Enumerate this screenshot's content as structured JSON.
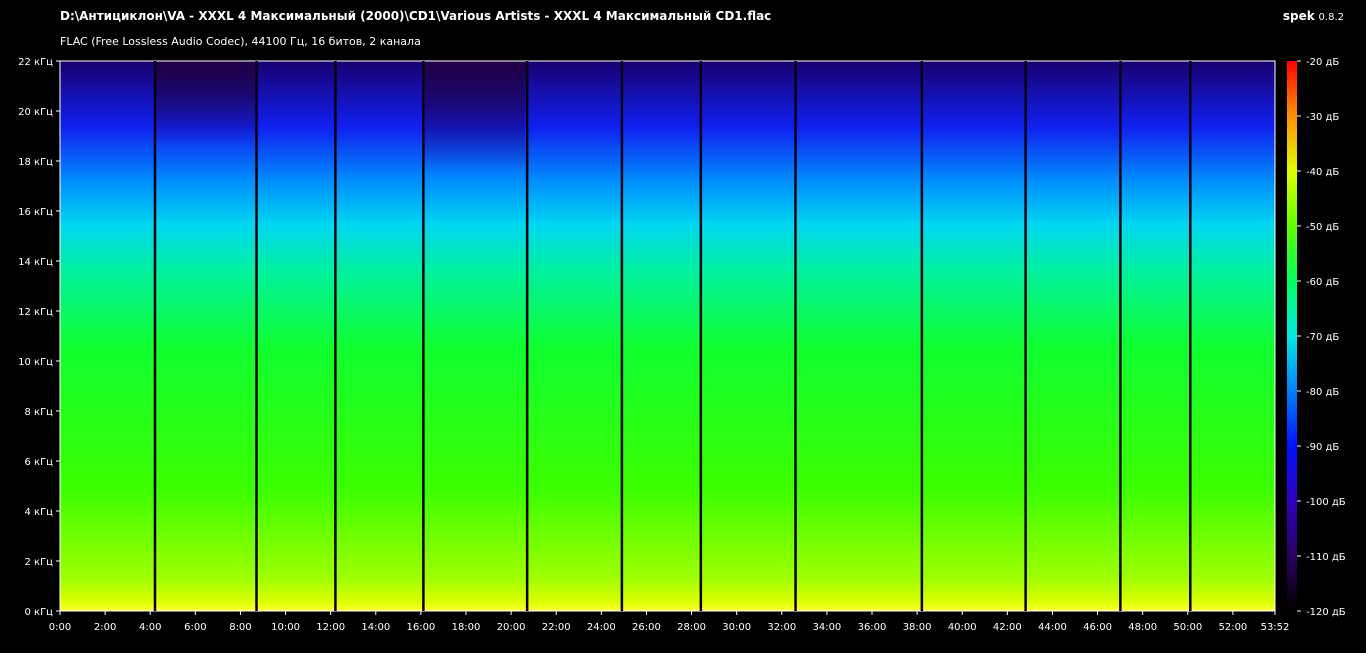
{
  "header": {
    "title": "D:\\Антициклон\\VA - XXXL 4 Максимальный (2000)\\CD1\\Various Artists - XXXL 4 Максимальный CD1.flac",
    "codec_info": "FLAC (Free Lossless Audio Codec), 44100 Гц, 16 битов, 2 канала",
    "app_name": "spek",
    "app_version": "0.8.2"
  },
  "spectrogram": {
    "freq_ticks": [
      "0 кГц",
      "2 кГц",
      "4 кГц",
      "6 кГц",
      "8 кГц",
      "10 кГц",
      "12 кГц",
      "14 кГц",
      "16 кГц",
      "18 кГц",
      "20 кГц",
      "22 кГц"
    ],
    "freq_range_khz": [
      0,
      22
    ],
    "time_ticks": [
      "0:00",
      "2:00",
      "4:00",
      "6:00",
      "8:00",
      "10:00",
      "12:00",
      "14:00",
      "16:00",
      "18:00",
      "20:00",
      "22:00",
      "24:00",
      "26:00",
      "28:00",
      "30:00",
      "32:00",
      "34:00",
      "36:00",
      "38:00",
      "40:00",
      "42:00",
      "44:00",
      "46:00",
      "48:00",
      "50:00",
      "52:00",
      "53:52"
    ],
    "duration": "53:52",
    "track_boundaries_min": [
      4.2,
      8.7,
      12.2,
      16.1,
      20.7,
      24.9,
      28.4,
      32.6,
      38.2,
      42.8,
      47.0,
      50.1
    ],
    "db_ticks": [
      "-20 дБ",
      "-30 дБ",
      "-40 дБ",
      "-50 дБ",
      "-60 дБ",
      "-70 дБ",
      "-80 дБ",
      "-90 дБ",
      "-100 дБ",
      "-110 дБ",
      "-120 дБ"
    ],
    "db_range": [
      -120,
      -20
    ],
    "palette": [
      "#000000",
      "#1a0033",
      "#3a0080",
      "#0000ff",
      "#0070ff",
      "#00e0ff",
      "#00ff80",
      "#40ff00",
      "#c0ff00",
      "#ffff00",
      "#ff8000",
      "#ff0000"
    ]
  }
}
